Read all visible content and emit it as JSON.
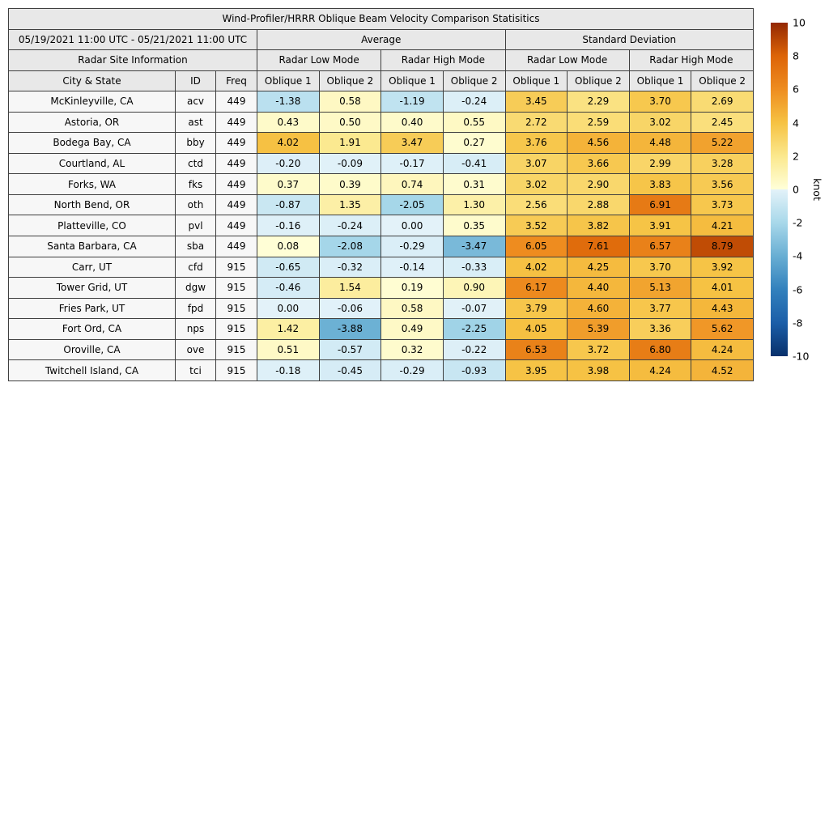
{
  "title": "Wind-Profiler/HRRR Oblique Beam Velocity Comparison Statisitics",
  "chart_data": {
    "type": "heatmap",
    "title": "Wind-Profiler/HRRR Oblique Beam Velocity Comparison Statisitics",
    "header": {
      "date_range": "05/19/2021 11:00 UTC - 05/21/2021 11:00 UTC",
      "group_average": "Average",
      "group_std": "Standard Deviation",
      "radar_site_info": "Radar Site Information",
      "mode_labels": [
        "Radar Low Mode",
        "Radar High Mode",
        "Radar Low Mode",
        "Radar High Mode"
      ],
      "col_city": "City & State",
      "col_id": "ID",
      "col_freq": "Freq",
      "oblique_labels": [
        "Oblique 1",
        "Oblique 2",
        "Oblique 1",
        "Oblique 2",
        "Oblique 1",
        "Oblique 2",
        "Oblique 1",
        "Oblique 2"
      ]
    },
    "rows": [
      {
        "city": "McKinleyville, CA",
        "id": "acv",
        "freq": "449",
        "values": [
          -1.38,
          0.58,
          -1.19,
          -0.24,
          3.45,
          2.29,
          3.7,
          2.69
        ]
      },
      {
        "city": "Astoria, OR",
        "id": "ast",
        "freq": "449",
        "values": [
          0.43,
          0.5,
          0.4,
          0.55,
          2.72,
          2.59,
          3.02,
          2.45
        ]
      },
      {
        "city": "Bodega Bay, CA",
        "id": "bby",
        "freq": "449",
        "values": [
          4.02,
          1.91,
          3.47,
          0.27,
          3.76,
          4.56,
          4.48,
          5.22
        ]
      },
      {
        "city": "Courtland, AL",
        "id": "ctd",
        "freq": "449",
        "values": [
          -0.2,
          -0.09,
          -0.17,
          -0.41,
          3.07,
          3.66,
          2.99,
          3.28
        ]
      },
      {
        "city": "Forks, WA",
        "id": "fks",
        "freq": "449",
        "values": [
          0.37,
          0.39,
          0.74,
          0.31,
          3.02,
          2.9,
          3.83,
          3.56
        ]
      },
      {
        "city": "North Bend, OR",
        "id": "oth",
        "freq": "449",
        "values": [
          -0.87,
          1.35,
          -2.05,
          1.3,
          2.56,
          2.88,
          6.91,
          3.73
        ]
      },
      {
        "city": "Platteville, CO",
        "id": "pvl",
        "freq": "449",
        "values": [
          -0.16,
          -0.24,
          0.0,
          0.35,
          3.52,
          3.82,
          3.91,
          4.21
        ]
      },
      {
        "city": "Santa Barbara, CA",
        "id": "sba",
        "freq": "449",
        "values": [
          0.08,
          -2.08,
          -0.29,
          -3.47,
          6.05,
          7.61,
          6.57,
          8.79
        ]
      },
      {
        "city": "Carr, UT",
        "id": "cfd",
        "freq": "915",
        "values": [
          -0.65,
          -0.32,
          -0.14,
          -0.33,
          4.02,
          4.25,
          3.7,
          3.92
        ]
      },
      {
        "city": "Tower Grid, UT",
        "id": "dgw",
        "freq": "915",
        "values": [
          -0.46,
          1.54,
          0.19,
          0.9,
          6.17,
          4.4,
          5.13,
          4.01
        ]
      },
      {
        "city": "Fries Park, UT",
        "id": "fpd",
        "freq": "915",
        "values": [
          0.0,
          -0.06,
          0.58,
          -0.07,
          3.79,
          4.6,
          3.77,
          4.43
        ]
      },
      {
        "city": "Fort Ord, CA",
        "id": "nps",
        "freq": "915",
        "values": [
          1.42,
          -3.88,
          0.49,
          -2.25,
          4.05,
          5.39,
          3.36,
          5.62
        ]
      },
      {
        "city": "Oroville, CA",
        "id": "ove",
        "freq": "915",
        "values": [
          0.51,
          -0.57,
          0.32,
          -0.22,
          6.53,
          3.72,
          6.8,
          4.24
        ]
      },
      {
        "city": "Twitchell Island, CA",
        "id": "tci",
        "freq": "915",
        "values": [
          -0.18,
          -0.45,
          -0.29,
          -0.93,
          3.95,
          3.98,
          4.24,
          4.52
        ]
      }
    ],
    "colorbar": {
      "label": "knot",
      "vmin": -10,
      "vmax": 10,
      "ticks": [
        10,
        8,
        6,
        4,
        2,
        0,
        -2,
        -4,
        -6,
        -8,
        -10
      ],
      "stops": [
        {
          "v": -10,
          "c": "#08306b"
        },
        {
          "v": -8,
          "c": "#1b5ea8"
        },
        {
          "v": -6,
          "c": "#3281bd"
        },
        {
          "v": -4,
          "c": "#68aed3"
        },
        {
          "v": -2,
          "c": "#a8d8ea"
        },
        {
          "v": -0.001,
          "c": "#e3f2f9"
        },
        {
          "v": 0.001,
          "c": "#ffffd9"
        },
        {
          "v": 2,
          "c": "#fbe88d"
        },
        {
          "v": 4,
          "c": "#f6c243"
        },
        {
          "v": 6,
          "c": "#ee8d20"
        },
        {
          "v": 8,
          "c": "#dd6407"
        },
        {
          "v": 10,
          "c": "#932803"
        }
      ]
    }
  }
}
